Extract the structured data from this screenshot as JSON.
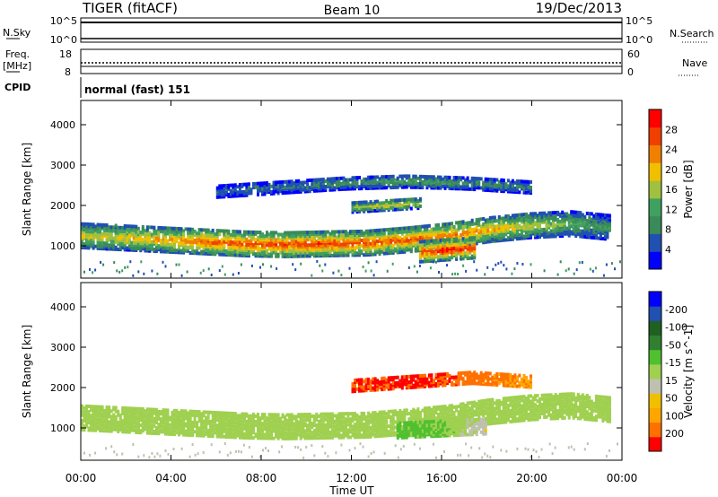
{
  "header": {
    "radar": "TIGER (fitACF)",
    "beam": "Beam 10",
    "date": "19/Dec/2013"
  },
  "noise_panel": {
    "left_label": "N.Sky",
    "right_label": "N.Search",
    "left_ticks": [
      "10^5",
      "10^0"
    ],
    "right_ticks": [
      "10^5",
      "10^0"
    ]
  },
  "freq_panel": {
    "left_label_1": "Freq.",
    "left_label_2": "[MHz]",
    "right_label": "Nave",
    "left_ticks": [
      "18",
      "8"
    ],
    "right_ticks": [
      "60",
      "0"
    ]
  },
  "cpid_panel": {
    "label": "CPID",
    "value": "normal (fast) 151"
  },
  "x_axis": {
    "label": "Time UT",
    "ticks": [
      "00:00",
      "04:00",
      "08:00",
      "12:00",
      "16:00",
      "20:00",
      "00:00"
    ]
  },
  "colors": {
    "power": [
      "#0000ff",
      "#2050b0",
      "#3a8a5a",
      "#40a060",
      "#a0c040",
      "#f0c000",
      "#f08000",
      "#f04000",
      "#ff0000"
    ],
    "velocity": [
      "#ff0000",
      "#ff7000",
      "#ffa500",
      "#f0c000",
      "#c0c0b0",
      "#a0d050",
      "#50c030",
      "#308030",
      "#206020",
      "#2050b0",
      "#0000ff"
    ]
  },
  "chart_data": [
    {
      "type": "heatmap",
      "title": "",
      "xlabel": "Time UT",
      "ylabel": "Slant Range [km]",
      "xlim": [
        0,
        24
      ],
      "ylim": [
        200,
        4600
      ],
      "yticks": [
        "1000",
        "2000",
        "3000",
        "4000"
      ],
      "colorbar": {
        "label": "Power [dB]",
        "ticks": [
          "4",
          "8",
          "12",
          "16",
          "20",
          "24",
          "28"
        ],
        "range": [
          0,
          32
        ]
      },
      "bands": [
        {
          "t_start": 0,
          "t_end": 23.5,
          "center": [
            1300,
            1250,
            1200,
            1150,
            1100,
            1080,
            1100,
            1120,
            1200,
            1300,
            1450,
            1550,
            1600,
            1500
          ],
          "halfwidth": 300,
          "peak_db": [
            18,
            20,
            22,
            26,
            27,
            28,
            28,
            27,
            26,
            25,
            22,
            18,
            14,
            10
          ]
        },
        {
          "t_start": 6,
          "t_end": 20,
          "center": [
            2400,
            2500,
            2600,
            2650,
            2600,
            2500
          ],
          "halfwidth": 150,
          "peak_db": [
            6,
            8,
            10,
            12,
            10,
            8
          ]
        },
        {
          "t_start": 15,
          "t_end": 17.5,
          "center": [
            900,
            950,
            1000
          ],
          "halfwidth": 250,
          "peak_db": [
            28,
            30,
            28
          ]
        },
        {
          "t_start": 12,
          "t_end": 15,
          "center": [
            2000,
            2050,
            2100
          ],
          "halfwidth": 120,
          "peak_db": [
            16,
            20,
            18
          ]
        }
      ]
    },
    {
      "type": "heatmap",
      "title": "",
      "xlabel": "Time UT",
      "ylabel": "Slant Range [km]",
      "xlim": [
        0,
        24
      ],
      "ylim": [
        200,
        4600
      ],
      "yticks": [
        "1000",
        "2000",
        "3000",
        "4000"
      ],
      "colorbar": {
        "label": "Velocity [m s^-1]",
        "ticks": [
          "200",
          "100",
          "50",
          "15",
          "-15",
          "-50",
          "-100",
          "-200"
        ],
        "range": [
          -250,
          250
        ]
      },
      "bands": [
        {
          "t_start": 0,
          "t_end": 23.5,
          "center": [
            1300,
            1250,
            1200,
            1150,
            1100,
            1080,
            1100,
            1120,
            1200,
            1300,
            1450,
            1550,
            1600,
            1500
          ],
          "halfwidth": 300,
          "vel": [
            0,
            0,
            0,
            0,
            0,
            0,
            0,
            0,
            0,
            0,
            0,
            0,
            0,
            0
          ]
        },
        {
          "t_start": 14,
          "t_end": 18,
          "center": [
            1000,
            1050,
            1100
          ],
          "halfwidth": 200,
          "vel": [
            40,
            30,
            -60
          ]
        },
        {
          "t_start": 12,
          "t_end": 20,
          "center": [
            2100,
            2200,
            2300,
            2200
          ],
          "halfwidth": 150,
          "vel": [
            -200,
            -220,
            -180,
            -150
          ]
        }
      ]
    }
  ]
}
